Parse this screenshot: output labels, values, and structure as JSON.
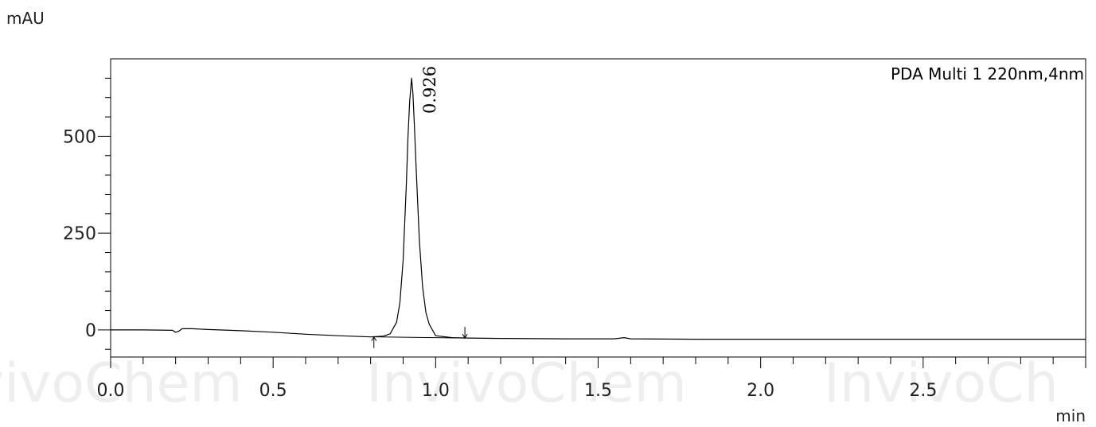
{
  "chart_data": {
    "type": "line",
    "ylabel": "mAU",
    "xlabel": "min",
    "xlim": [
      0.0,
      3.0
    ],
    "ylim": [
      -70,
      700
    ],
    "x_ticks": [
      {
        "value": 0.0,
        "label": "0.0"
      },
      {
        "value": 0.5,
        "label": "0.5"
      },
      {
        "value": 1.0,
        "label": "1.0"
      },
      {
        "value": 1.5,
        "label": "1.5"
      },
      {
        "value": 2.0,
        "label": "2.0"
      },
      {
        "value": 2.5,
        "label": "2.5"
      }
    ],
    "y_ticks": [
      {
        "value": 0,
        "label": "0"
      },
      {
        "value": 250,
        "label": "250"
      },
      {
        "value": 500,
        "label": "500"
      }
    ],
    "legend": "PDA Multi 1 220nm,4nm",
    "legend_position": "top-right",
    "grid": false,
    "line_color": "#000000",
    "series": [
      {
        "x": [
          0.0,
          0.1,
          0.19,
          0.2,
          0.21,
          0.22,
          0.25,
          0.3,
          0.4,
          0.5,
          0.6,
          0.7,
          0.8,
          0.84,
          0.86,
          0.88,
          0.89,
          0.9,
          0.91,
          0.915,
          0.92,
          0.926,
          0.93,
          0.935,
          0.94,
          0.95,
          0.96,
          0.97,
          0.98,
          1.0,
          1.05,
          1.1,
          1.2,
          1.4,
          1.55,
          1.58,
          1.6,
          1.8,
          2.0,
          2.5,
          3.0
        ],
        "y": [
          0,
          0,
          -1,
          -6,
          -3,
          3,
          3,
          1,
          -2,
          -6,
          -11,
          -15,
          -18,
          -16,
          -10,
          20,
          70,
          180,
          380,
          500,
          590,
          650,
          610,
          520,
          420,
          230,
          110,
          45,
          15,
          -15,
          -20,
          -21,
          -22,
          -23,
          -23,
          -20,
          -23,
          -24,
          -24,
          -24,
          -24
        ]
      }
    ],
    "peaks": [
      {
        "rt": 0.926,
        "label": "0.926"
      }
    ],
    "integration_marks": [
      {
        "x": 0.81,
        "y": -18,
        "direction": "up"
      },
      {
        "x": 1.09,
        "y": -21,
        "direction": "down"
      }
    ],
    "watermark_words": [
      "vivoChem",
      "InvivoChem",
      "InvivoCh"
    ]
  }
}
